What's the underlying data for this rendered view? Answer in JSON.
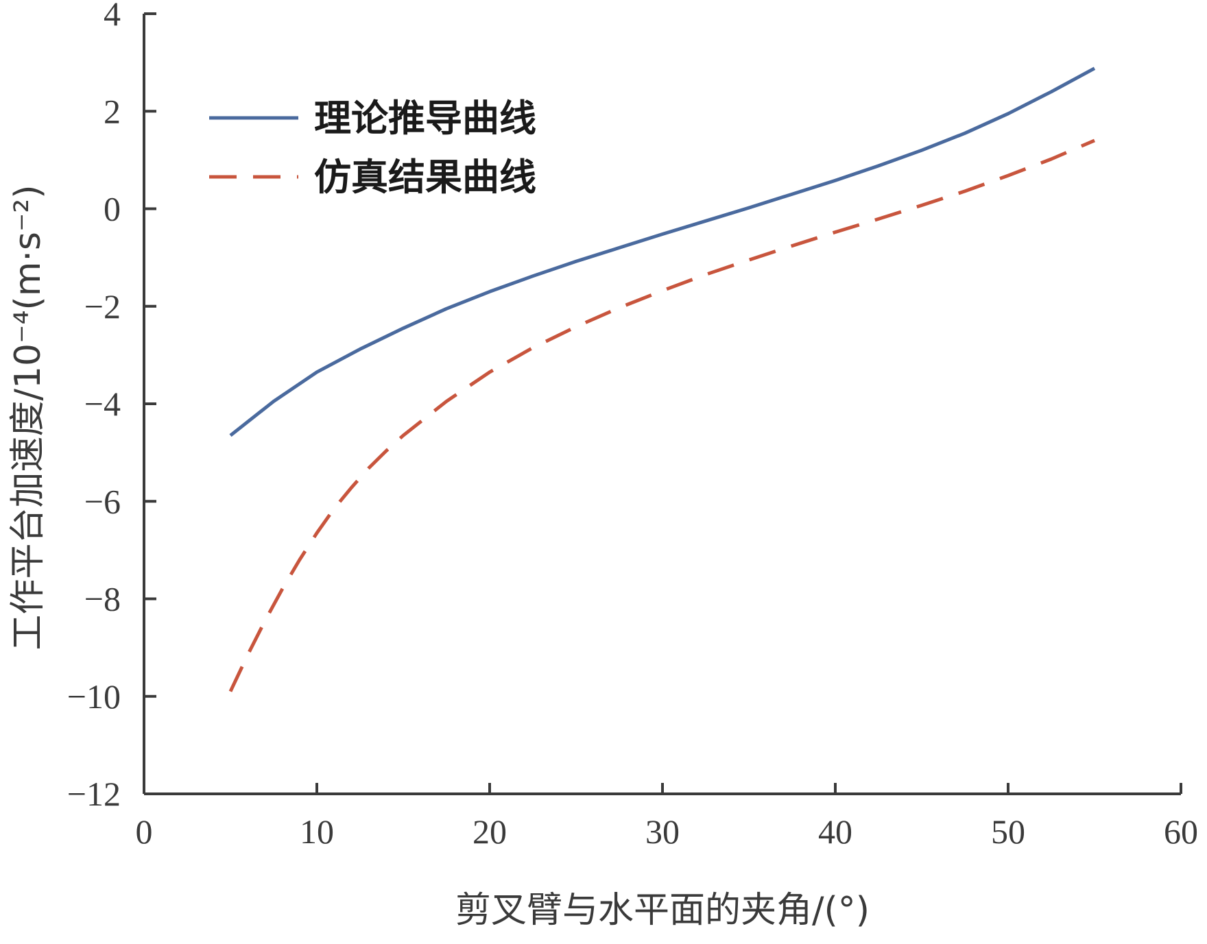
{
  "chart_data": {
    "type": "line",
    "title": "",
    "xlabel": "剪叉臂与水平面的夹角/(°)",
    "ylabel": "工作平台加速度/10⁻⁴(m·s⁻²)",
    "xlim": [
      0,
      60
    ],
    "ylim": [
      -12,
      4
    ],
    "xticks": [
      0,
      10,
      20,
      30,
      40,
      50,
      60
    ],
    "xtick_labels": [
      "0",
      "10",
      "20",
      "30",
      "40",
      "50",
      "60"
    ],
    "yticks": [
      4,
      2,
      0,
      -2,
      -4,
      -6,
      -8,
      -10,
      -12
    ],
    "ytick_labels": [
      "4",
      "2",
      "0",
      "−2",
      "−4",
      "−6",
      "−8",
      "−10",
      "−12"
    ],
    "grid": false,
    "legend_position": "top-left",
    "series": [
      {
        "name": "理论推导曲线",
        "color": "#4a6a9e",
        "style": "solid",
        "x": [
          5,
          7.5,
          10,
          12.5,
          15,
          17.5,
          20,
          22.5,
          25,
          27.5,
          30,
          32.5,
          35,
          37.5,
          40,
          42.5,
          45,
          47.5,
          50,
          52.5,
          55
        ],
        "y": [
          -4.65,
          -3.95,
          -3.35,
          -2.88,
          -2.45,
          -2.05,
          -1.7,
          -1.38,
          -1.08,
          -0.8,
          -0.52,
          -0.25,
          0.02,
          0.3,
          0.58,
          0.88,
          1.2,
          1.55,
          1.95,
          2.4,
          2.88
        ]
      },
      {
        "name": "仿真结果曲线",
        "color": "#c8553d",
        "style": "dashed",
        "x": [
          5,
          6,
          7,
          8,
          9,
          10,
          11,
          12,
          13,
          14,
          15,
          17.5,
          20,
          22.5,
          25,
          27.5,
          30,
          32.5,
          35,
          37.5,
          40,
          42.5,
          45,
          47.5,
          50,
          52.5,
          55
        ],
        "y": [
          -9.9,
          -9.15,
          -8.45,
          -7.8,
          -7.2,
          -6.65,
          -6.15,
          -5.72,
          -5.32,
          -4.97,
          -4.65,
          -3.95,
          -3.35,
          -2.85,
          -2.42,
          -2.03,
          -1.68,
          -1.35,
          -1.05,
          -0.76,
          -0.48,
          -0.21,
          0.07,
          0.36,
          0.68,
          1.02,
          1.4
        ]
      }
    ]
  }
}
